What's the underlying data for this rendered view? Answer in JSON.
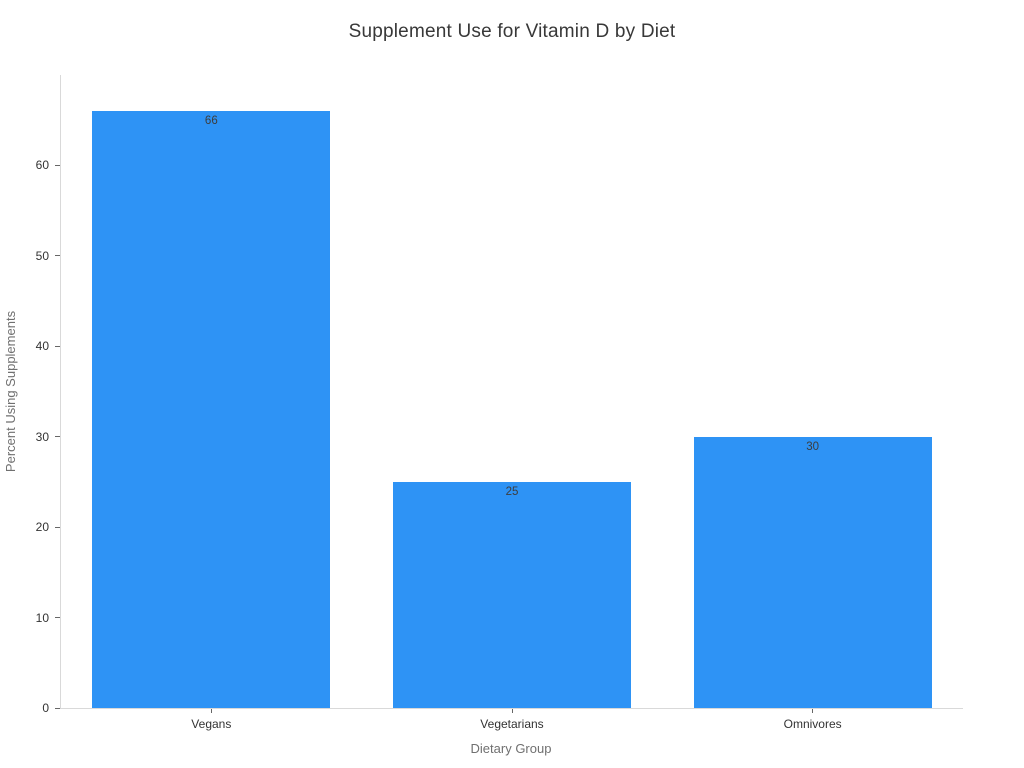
{
  "chart_data": {
    "type": "bar",
    "title": "Supplement Use for Vitamin D by Diet",
    "xlabel": "Dietary Group",
    "ylabel": "Percent Using Supplements",
    "categories": [
      "Vegans",
      "Vegetarians",
      "Omnivores"
    ],
    "values": [
      66,
      25,
      30
    ],
    "bar_value_labels": [
      "66",
      "25",
      "30"
    ],
    "ylim": [
      0,
      70
    ],
    "yticks": [
      0,
      10,
      20,
      30,
      40,
      50,
      60
    ],
    "grid": false,
    "legend": "none",
    "bar_width_fraction": 0.79,
    "colors": {
      "background": "#ffffff",
      "bar": "#2E93F5",
      "spine": "#d9d9d9",
      "tick": "#666666",
      "tick_label": "#333333",
      "axis_title": "#707070",
      "title": "#383838",
      "value_label": "#3d3d3d"
    }
  }
}
